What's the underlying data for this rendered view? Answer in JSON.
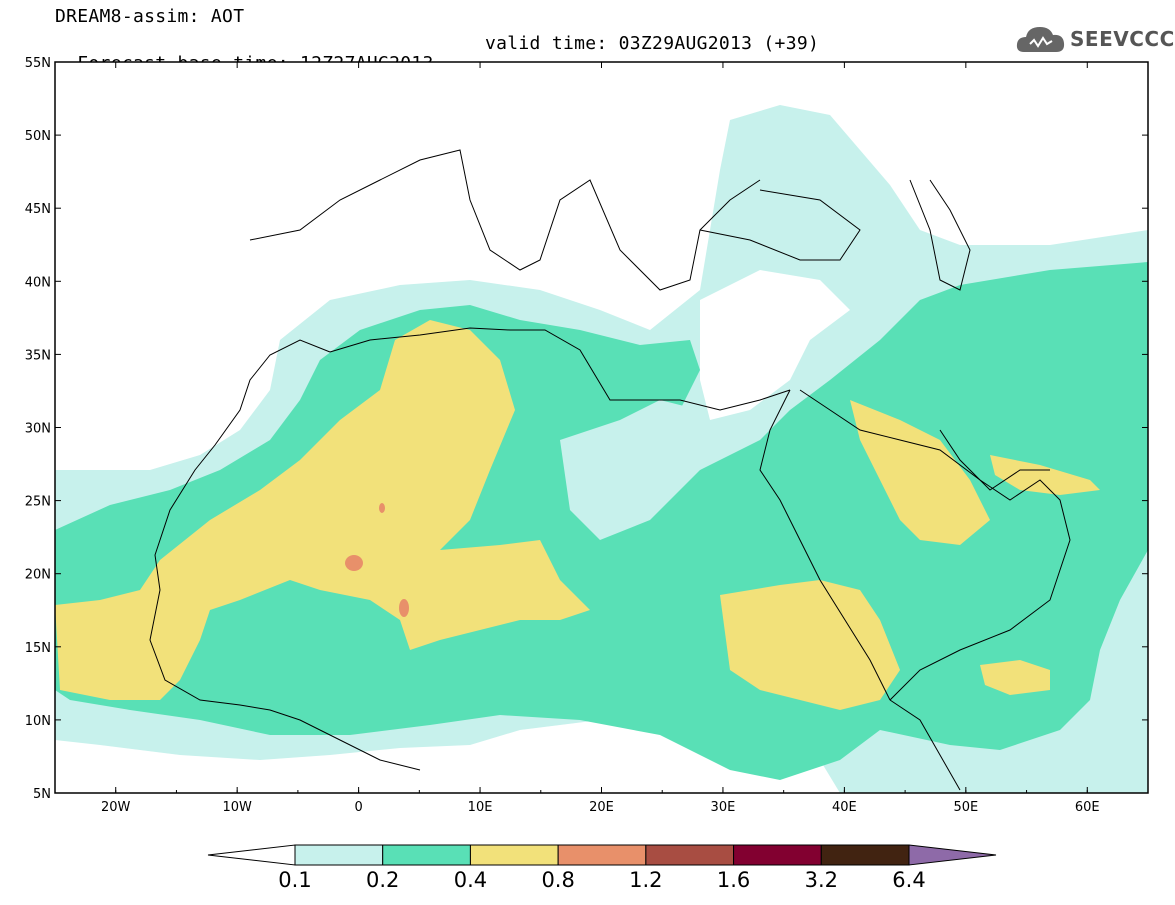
{
  "header": {
    "title": "DREAM8-assim: AOT",
    "base_time": "Forecast base time: 12Z27AUG2013",
    "valid_time": "valid time: 03Z29AUG2013 (+39)"
  },
  "logo": {
    "text": "SEEVCCC",
    "icon": "cloud-icon"
  },
  "map": {
    "lon_range": [
      -25,
      65
    ],
    "lat_range": [
      5,
      55
    ],
    "lat_ticks": [
      "5N",
      "10N",
      "15N",
      "20N",
      "25N",
      "30N",
      "35N",
      "40N",
      "45N",
      "50N",
      "55N"
    ],
    "lon_ticks": [
      "20W",
      "10W",
      "0",
      "10E",
      "20E",
      "30E",
      "40E",
      "50E",
      "60E"
    ]
  },
  "colorbar": {
    "labels": [
      "0.1",
      "0.2",
      "0.4",
      "0.8",
      "1.2",
      "1.6",
      "3.2",
      "6.4"
    ],
    "colors": [
      "#ffffff",
      "#c7f1ec",
      "#59e0b6",
      "#f2e17a",
      "#e8906a",
      "#a84d42",
      "#820030",
      "#412311",
      "#8e6aa8"
    ]
  }
}
